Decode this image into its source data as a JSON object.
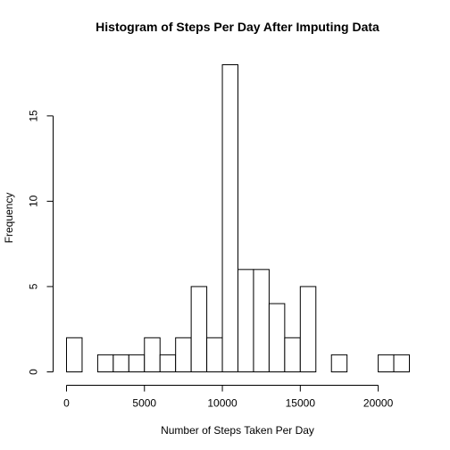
{
  "chart_data": {
    "type": "bar",
    "title": "Histogram of Steps Per Day After Imputing Data",
    "xlabel": "Number of Steps Taken Per Day",
    "ylabel": "Frequency",
    "bin_width": 1000,
    "bins": [
      {
        "start": 0,
        "end": 1000,
        "count": 2
      },
      {
        "start": 1000,
        "end": 2000,
        "count": 0
      },
      {
        "start": 2000,
        "end": 3000,
        "count": 1
      },
      {
        "start": 3000,
        "end": 4000,
        "count": 1
      },
      {
        "start": 4000,
        "end": 5000,
        "count": 1
      },
      {
        "start": 5000,
        "end": 6000,
        "count": 2
      },
      {
        "start": 6000,
        "end": 7000,
        "count": 1
      },
      {
        "start": 7000,
        "end": 8000,
        "count": 2
      },
      {
        "start": 8000,
        "end": 9000,
        "count": 5
      },
      {
        "start": 9000,
        "end": 10000,
        "count": 2
      },
      {
        "start": 10000,
        "end": 11000,
        "count": 18
      },
      {
        "start": 11000,
        "end": 12000,
        "count": 6
      },
      {
        "start": 12000,
        "end": 13000,
        "count": 6
      },
      {
        "start": 13000,
        "end": 14000,
        "count": 4
      },
      {
        "start": 14000,
        "end": 15000,
        "count": 2
      },
      {
        "start": 15000,
        "end": 16000,
        "count": 5
      },
      {
        "start": 16000,
        "end": 17000,
        "count": 0
      },
      {
        "start": 17000,
        "end": 18000,
        "count": 1
      },
      {
        "start": 18000,
        "end": 19000,
        "count": 0
      },
      {
        "start": 19000,
        "end": 20000,
        "count": 0
      },
      {
        "start": 20000,
        "end": 21000,
        "count": 1
      },
      {
        "start": 21000,
        "end": 22000,
        "count": 1
      }
    ],
    "xlim": [
      0,
      22000
    ],
    "ylim": [
      0,
      18
    ],
    "x_ticks": [
      0,
      5000,
      10000,
      15000,
      20000
    ],
    "x_tick_labels": [
      "0",
      "5000",
      "10000",
      "15000",
      "20000"
    ],
    "y_ticks": [
      0,
      5,
      10,
      15
    ],
    "y_tick_labels": [
      "0",
      "5",
      "10",
      "15"
    ],
    "grid": false,
    "bar_fill": "#ffffff",
    "bar_stroke": "#000000"
  }
}
